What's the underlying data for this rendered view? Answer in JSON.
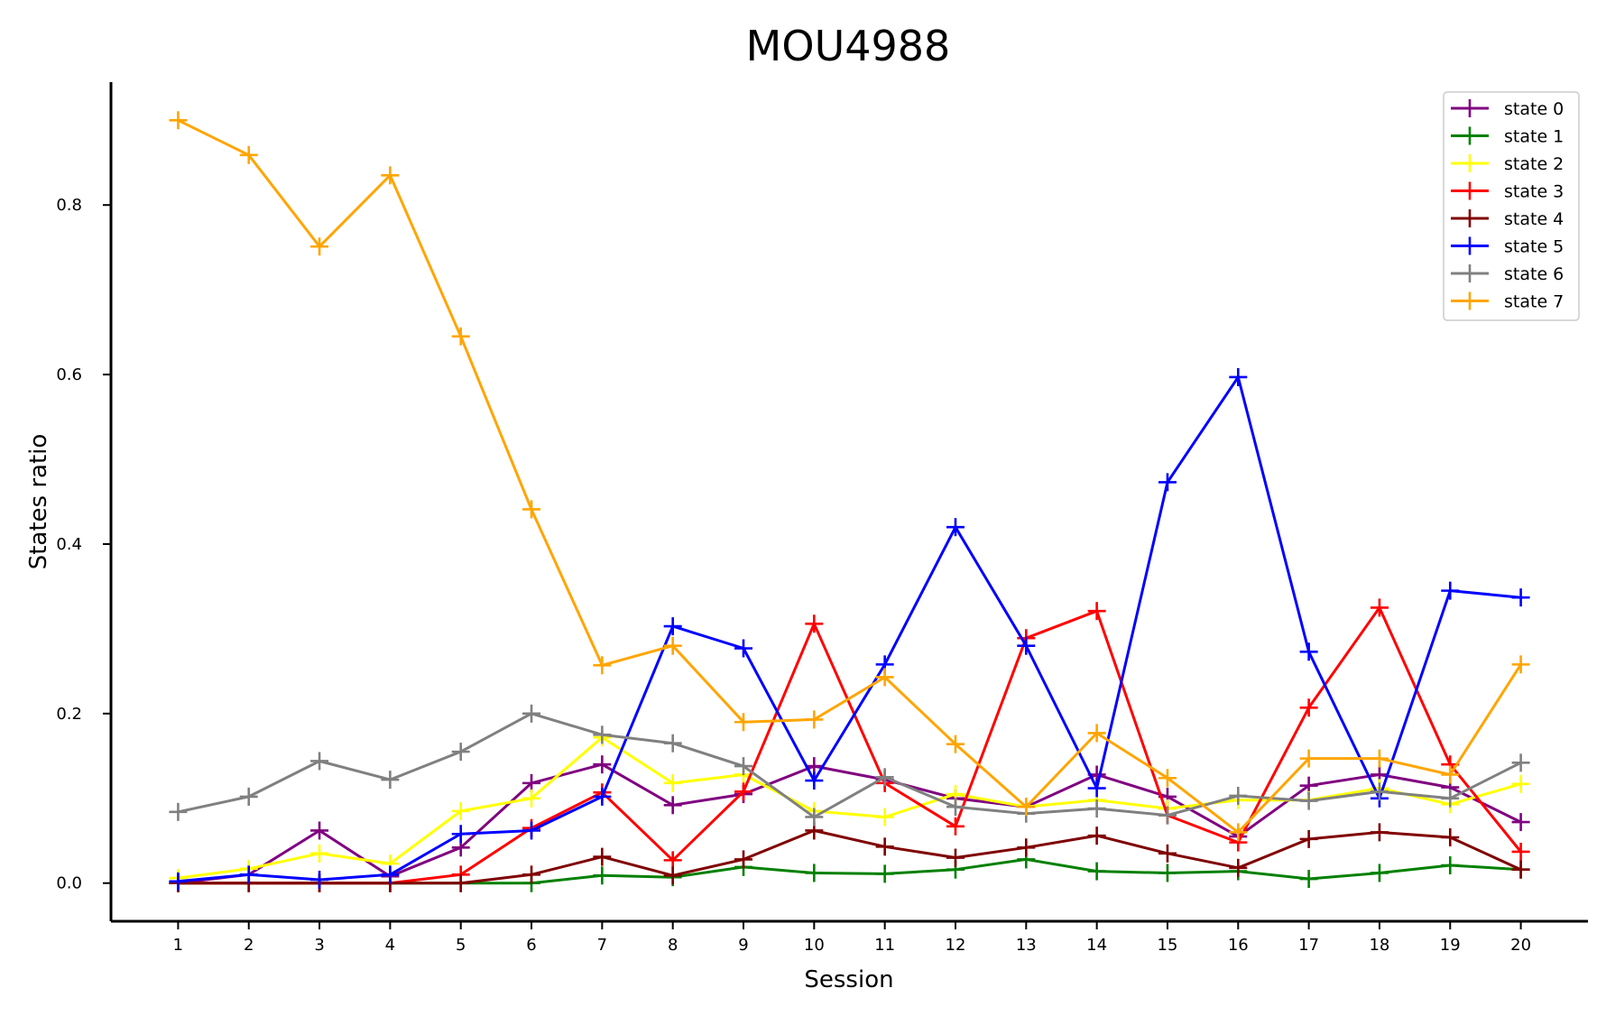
{
  "chart_data": {
    "type": "line",
    "title": "MOU4988",
    "xlabel": "Session",
    "ylabel": "States ratio",
    "x": [
      1,
      2,
      3,
      4,
      5,
      6,
      7,
      8,
      9,
      10,
      11,
      12,
      13,
      14,
      15,
      16,
      17,
      18,
      19,
      20
    ],
    "xticks": [
      "1",
      "2",
      "3",
      "4",
      "5",
      "6",
      "7",
      "8",
      "9",
      "10",
      "11",
      "12",
      "13",
      "14",
      "15",
      "16",
      "17",
      "18",
      "19",
      "20"
    ],
    "yticks": [
      0.0,
      0.2,
      0.4,
      0.6,
      0.8
    ],
    "ytick_labels": [
      "0.0",
      "0.2",
      "0.4",
      "0.6",
      "0.8"
    ],
    "ylim": [
      -0.045,
      0.945
    ],
    "xlim": [
      0.05,
      20.95
    ],
    "grid": false,
    "legend_position": "top-right",
    "marker": "plus",
    "series": [
      {
        "name": "state 0",
        "color": "#800080",
        "values": [
          0.0,
          0.01,
          0.062,
          0.008,
          0.042,
          0.118,
          0.14,
          0.092,
          0.105,
          0.138,
          0.122,
          0.1,
          0.09,
          0.128,
          0.102,
          0.055,
          0.115,
          0.128,
          0.113,
          0.072
        ]
      },
      {
        "name": "state 1",
        "color": "#008000",
        "values": [
          0.0,
          0.0,
          0.0,
          0.0,
          0.0,
          0.0,
          0.009,
          0.007,
          0.019,
          0.012,
          0.011,
          0.016,
          0.028,
          0.014,
          0.012,
          0.014,
          0.005,
          0.012,
          0.021,
          0.016
        ]
      },
      {
        "name": "state 2",
        "color": "#ffff00",
        "values": [
          0.006,
          0.017,
          0.035,
          0.023,
          0.085,
          0.1,
          0.172,
          0.118,
          0.128,
          0.085,
          0.078,
          0.105,
          0.09,
          0.098,
          0.088,
          0.098,
          0.098,
          0.112,
          0.093,
          0.117
        ]
      },
      {
        "name": "state 3",
        "color": "#ff0000",
        "values": [
          0.0,
          0.0,
          0.0,
          0.0,
          0.01,
          0.065,
          0.107,
          0.027,
          0.108,
          0.306,
          0.118,
          0.067,
          0.289,
          0.321,
          0.08,
          0.048,
          0.207,
          0.325,
          0.14,
          0.037
        ]
      },
      {
        "name": "state 4",
        "color": "#800000",
        "values": [
          0.0,
          0.0,
          0.0,
          0.0,
          0.0,
          0.01,
          0.031,
          0.009,
          0.028,
          0.062,
          0.043,
          0.03,
          0.042,
          0.056,
          0.035,
          0.018,
          0.052,
          0.06,
          0.054,
          0.016
        ]
      },
      {
        "name": "state 5",
        "color": "#0000ff",
        "values": [
          0.002,
          0.01,
          0.004,
          0.01,
          0.058,
          0.062,
          0.102,
          0.303,
          0.277,
          0.121,
          0.258,
          0.42,
          0.28,
          0.112,
          0.473,
          0.597,
          0.273,
          0.1,
          0.345,
          0.337
        ]
      },
      {
        "name": "state 6",
        "color": "#808080",
        "values": [
          0.084,
          0.102,
          0.144,
          0.122,
          0.155,
          0.2,
          0.175,
          0.165,
          0.138,
          0.078,
          0.125,
          0.09,
          0.082,
          0.088,
          0.08,
          0.103,
          0.097,
          0.108,
          0.1,
          0.142
        ]
      },
      {
        "name": "state 7",
        "color": "#ffa500",
        "values": [
          0.9,
          0.859,
          0.751,
          0.835,
          0.645,
          0.441,
          0.257,
          0.28,
          0.19,
          0.193,
          0.243,
          0.164,
          0.09,
          0.177,
          0.124,
          0.06,
          0.147,
          0.147,
          0.128,
          0.258
        ]
      }
    ]
  }
}
